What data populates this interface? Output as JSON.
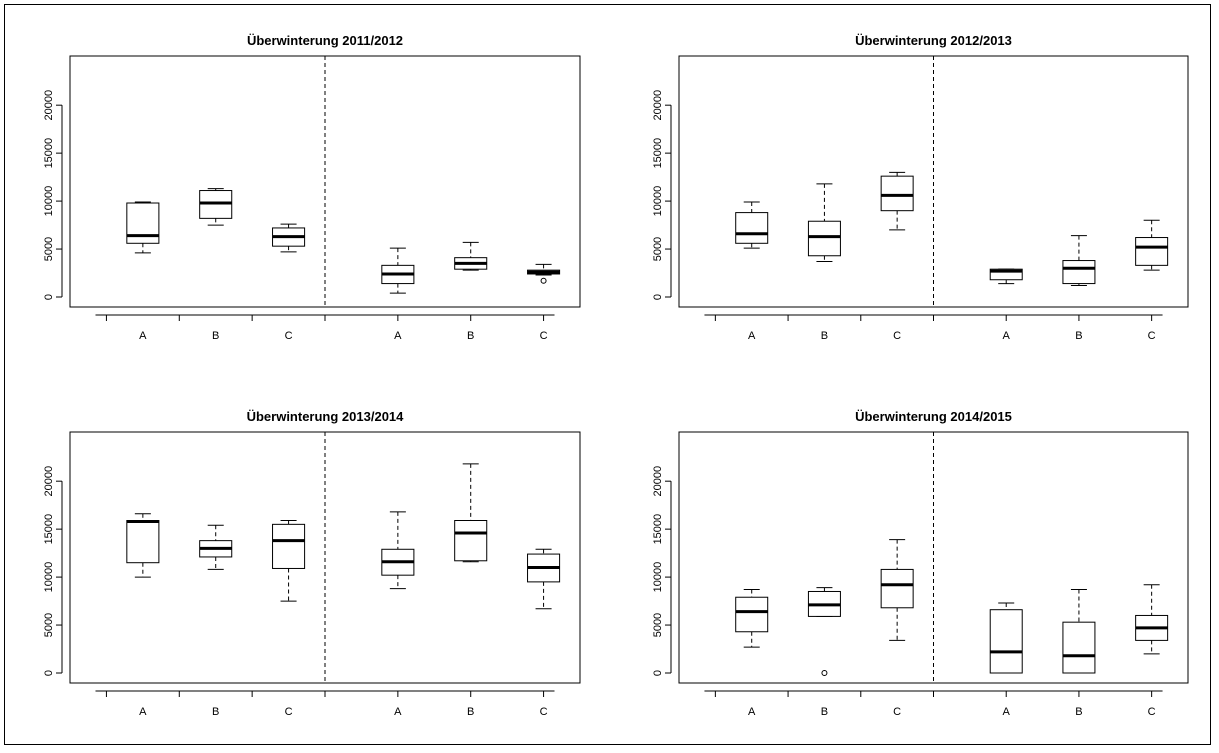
{
  "chart_data": [
    {
      "type": "boxplot",
      "title": "Überwinterung 2011/2012",
      "categories": [
        "A",
        "B",
        "C",
        "A",
        "B",
        "C"
      ],
      "ylim": [
        0,
        22000
      ],
      "yticks": [
        "0",
        "5000",
        "10000",
        "15000",
        "20000"
      ],
      "boxes": [
        {
          "whisker_low": 4600,
          "q1": 5600,
          "median": 6400,
          "q3": 9800,
          "whisker_high": 9900,
          "outliers": []
        },
        {
          "whisker_low": 7500,
          "q1": 8200,
          "median": 9800,
          "q3": 11100,
          "whisker_high": 11300,
          "outliers": []
        },
        {
          "whisker_low": 4700,
          "q1": 5300,
          "median": 6300,
          "q3": 7200,
          "whisker_high": 7600,
          "outliers": []
        },
        {
          "whisker_low": 400,
          "q1": 1400,
          "median": 2400,
          "q3": 3300,
          "whisker_high": 5100,
          "outliers": []
        },
        {
          "whisker_low": 2800,
          "q1": 2900,
          "median": 3500,
          "q3": 4100,
          "whisker_high": 5700,
          "outliers": []
        },
        {
          "whisker_low": 2300,
          "q1": 2400,
          "median": 2600,
          "q3": 2800,
          "whisker_high": 3400,
          "outliers": [
            1700
          ]
        }
      ]
    },
    {
      "type": "boxplot",
      "title": "Überwinterung 2012/2013",
      "categories": [
        "A",
        "B",
        "C",
        "A",
        "B",
        "C"
      ],
      "ylim": [
        0,
        22000
      ],
      "yticks": [
        "0",
        "5000",
        "10000",
        "15000",
        "20000"
      ],
      "boxes": [
        {
          "whisker_low": 5100,
          "q1": 5600,
          "median": 6600,
          "q3": 8800,
          "whisker_high": 9900,
          "outliers": []
        },
        {
          "whisker_low": 3700,
          "q1": 4300,
          "median": 6300,
          "q3": 7900,
          "whisker_high": 11800,
          "outliers": []
        },
        {
          "whisker_low": 7000,
          "q1": 9000,
          "median": 10600,
          "q3": 12600,
          "whisker_high": 13000,
          "outliers": []
        },
        {
          "whisker_low": 1400,
          "q1": 1800,
          "median": 2700,
          "q3": 2900,
          "whisker_high": 2900,
          "outliers": []
        },
        {
          "whisker_low": 1200,
          "q1": 1400,
          "median": 3000,
          "q3": 3800,
          "whisker_high": 6400,
          "outliers": []
        },
        {
          "whisker_low": 2800,
          "q1": 3300,
          "median": 5200,
          "q3": 6200,
          "whisker_high": 8000,
          "outliers": []
        }
      ]
    },
    {
      "type": "boxplot",
      "title": "Überwinterung 2013/2014",
      "categories": [
        "A",
        "B",
        "C",
        "A",
        "B",
        "C"
      ],
      "ylim": [
        0,
        22000
      ],
      "yticks": [
        "0",
        "5000",
        "10000",
        "15000",
        "20000"
      ],
      "boxes": [
        {
          "whisker_low": 10000,
          "q1": 11500,
          "median": 15800,
          "q3": 15900,
          "whisker_high": 16600,
          "outliers": []
        },
        {
          "whisker_low": 10800,
          "q1": 12100,
          "median": 13000,
          "q3": 13800,
          "whisker_high": 15400,
          "outliers": []
        },
        {
          "whisker_low": 7500,
          "q1": 10900,
          "median": 13800,
          "q3": 15500,
          "whisker_high": 15900,
          "outliers": []
        },
        {
          "whisker_low": 8800,
          "q1": 10200,
          "median": 11600,
          "q3": 12900,
          "whisker_high": 16800,
          "outliers": []
        },
        {
          "whisker_low": 11600,
          "q1": 11700,
          "median": 14600,
          "q3": 15900,
          "whisker_high": 21800,
          "outliers": []
        },
        {
          "whisker_low": 6700,
          "q1": 9500,
          "median": 11000,
          "q3": 12400,
          "whisker_high": 12900,
          "outliers": []
        }
      ]
    },
    {
      "type": "boxplot",
      "title": "Überwinterung 2014/2015",
      "categories": [
        "A",
        "B",
        "C",
        "A",
        "B",
        "C"
      ],
      "ylim": [
        0,
        22000
      ],
      "yticks": [
        "0",
        "5000",
        "10000",
        "15000",
        "20000"
      ],
      "boxes": [
        {
          "whisker_low": 2700,
          "q1": 4300,
          "median": 6400,
          "q3": 7900,
          "whisker_high": 8700,
          "outliers": []
        },
        {
          "whisker_low": 5900,
          "q1": 5900,
          "median": 7100,
          "q3": 8500,
          "whisker_high": 8900,
          "outliers": [
            0
          ]
        },
        {
          "whisker_low": 3400,
          "q1": 6800,
          "median": 9200,
          "q3": 10800,
          "whisker_high": 13900,
          "outliers": []
        },
        {
          "whisker_low": 0,
          "q1": 0,
          "median": 2200,
          "q3": 6600,
          "whisker_high": 7300,
          "outliers": []
        },
        {
          "whisker_low": 0,
          "q1": 0,
          "median": 1800,
          "q3": 5300,
          "whisker_high": 8700,
          "outliers": []
        },
        {
          "whisker_low": 2000,
          "q1": 3400,
          "median": 4700,
          "q3": 6000,
          "whisker_high": 9200,
          "outliers": []
        }
      ]
    }
  ]
}
